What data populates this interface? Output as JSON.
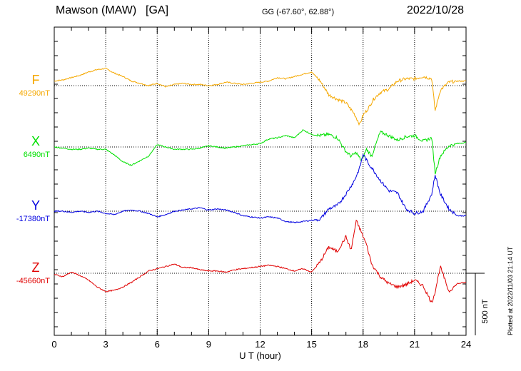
{
  "header": {
    "station": "Mawson (MAW)",
    "code": "[GA]",
    "coords": "GG (-67.60°,  62.88°)",
    "date": "2022/10/28"
  },
  "plotted_note": "Plotted at 2022/11/03 21:14 UT",
  "chart_data": {
    "type": "line",
    "xlabel": "U T (hour)",
    "xlim": [
      0,
      24
    ],
    "x_ticks": [
      "0",
      "3",
      "6",
      "9",
      "12",
      "15",
      "18",
      "21",
      "24"
    ],
    "scale_bar": {
      "label": "500 nT",
      "value_nT": 500
    },
    "grid": true,
    "series": [
      {
        "name": "F",
        "baseline_label": "49290nT",
        "baseline_nT": 49290,
        "color": "#f5a800",
        "x": [
          0,
          0.5,
          1,
          1.5,
          2,
          2.5,
          3,
          3.5,
          4,
          4.5,
          5,
          5.5,
          6,
          6.5,
          7,
          7.5,
          8,
          8.5,
          9,
          9.5,
          10,
          10.5,
          11,
          11.5,
          12,
          12.5,
          13,
          13.5,
          14,
          14.5,
          15,
          15.5,
          16,
          16.5,
          17,
          17.5,
          17.8,
          18,
          18.3,
          18.6,
          19,
          19.5,
          20,
          20.5,
          21,
          21.5,
          22,
          22.2,
          22.5,
          23,
          23.5,
          24
        ],
        "y": [
          40,
          50,
          70,
          90,
          120,
          140,
          150,
          110,
          80,
          40,
          20,
          0,
          20,
          -10,
          10,
          20,
          10,
          10,
          0,
          10,
          30,
          20,
          10,
          20,
          30,
          40,
          70,
          60,
          80,
          100,
          120,
          40,
          -80,
          -120,
          -150,
          -250,
          -340,
          -260,
          -200,
          -120,
          -60,
          -30,
          40,
          60,
          60,
          80,
          60,
          -220,
          -40,
          30,
          40,
          40
        ]
      },
      {
        "name": "X",
        "baseline_label": "6490nT",
        "baseline_nT": 6490,
        "color": "#00e000",
        "x": [
          0,
          0.5,
          1,
          1.5,
          2,
          2.5,
          3,
          3.5,
          4,
          4.5,
          5,
          5.5,
          6,
          6.5,
          7,
          7.5,
          8,
          8.5,
          9,
          9.5,
          10,
          10.5,
          11,
          11.5,
          12,
          12.5,
          13,
          13.5,
          14,
          14.5,
          15,
          15.5,
          16,
          16.5,
          17,
          17.3,
          17.6,
          17.9,
          18.2,
          18.5,
          19,
          19.5,
          20,
          20.5,
          21,
          21.5,
          22,
          22.2,
          22.5,
          23,
          23.5,
          24
        ],
        "y": [
          0,
          -10,
          -20,
          -20,
          -10,
          -20,
          -20,
          -70,
          -130,
          -160,
          -120,
          -80,
          20,
          0,
          -20,
          -20,
          -20,
          -10,
          10,
          0,
          -10,
          0,
          10,
          20,
          30,
          70,
          80,
          100,
          80,
          150,
          110,
          100,
          110,
          80,
          -40,
          -80,
          -50,
          -120,
          -20,
          -80,
          130,
          100,
          60,
          90,
          100,
          50,
          80,
          -230,
          -80,
          10,
          30,
          40
        ]
      },
      {
        "name": "Y",
        "baseline_label": "-17380nT",
        "baseline_nT": -17380,
        "color": "#0000e0",
        "x": [
          0,
          0.5,
          1,
          1.5,
          2,
          2.5,
          3,
          3.5,
          4,
          4.5,
          5,
          5.5,
          6,
          6.5,
          7,
          7.5,
          8,
          8.5,
          9,
          9.5,
          10,
          10.5,
          11,
          11.5,
          12,
          12.5,
          13,
          13.5,
          14,
          14.5,
          15,
          15.5,
          16,
          16.5,
          17,
          17.5,
          17.8,
          18,
          18.3,
          18.6,
          19,
          19.5,
          20,
          20.5,
          21,
          21.5,
          22,
          22.2,
          22.5,
          23,
          23.5,
          24
        ],
        "y": [
          0,
          0,
          -10,
          0,
          -10,
          0,
          -20,
          -30,
          0,
          10,
          0,
          -20,
          -50,
          -30,
          0,
          10,
          20,
          30,
          10,
          20,
          10,
          -10,
          -40,
          -50,
          -60,
          -50,
          -60,
          -90,
          -100,
          -90,
          -80,
          -70,
          20,
          50,
          150,
          270,
          380,
          500,
          420,
          360,
          270,
          180,
          160,
          20,
          -20,
          0,
          150,
          320,
          150,
          20,
          -40,
          -40
        ]
      },
      {
        "name": "Z",
        "baseline_label": "-45660nT",
        "baseline_nT": -45660,
        "color": "#e00000",
        "x": [
          0,
          0.5,
          1,
          1.5,
          2,
          2.5,
          3,
          3.5,
          4,
          4.5,
          5,
          5.5,
          6,
          6.5,
          7,
          7.5,
          8,
          8.5,
          9,
          9.5,
          10,
          10.5,
          11,
          11.5,
          12,
          12.5,
          13,
          13.5,
          14,
          14.5,
          15,
          15.5,
          16,
          16.5,
          17,
          17.3,
          17.6,
          17.9,
          18.2,
          18.5,
          19,
          19.5,
          20,
          20.5,
          21,
          21.5,
          22,
          22.2,
          22.5,
          23,
          23.5,
          24
        ],
        "y": [
          -10,
          -30,
          10,
          -20,
          -60,
          -120,
          -160,
          -150,
          -120,
          -80,
          -30,
          20,
          40,
          60,
          80,
          50,
          50,
          30,
          20,
          20,
          10,
          30,
          40,
          50,
          60,
          70,
          60,
          40,
          20,
          40,
          10,
          100,
          230,
          190,
          320,
          200,
          460,
          360,
          250,
          80,
          -30,
          -90,
          -120,
          -100,
          -60,
          -110,
          -260,
          -160,
          60,
          -160,
          -90,
          -80
        ]
      }
    ]
  }
}
